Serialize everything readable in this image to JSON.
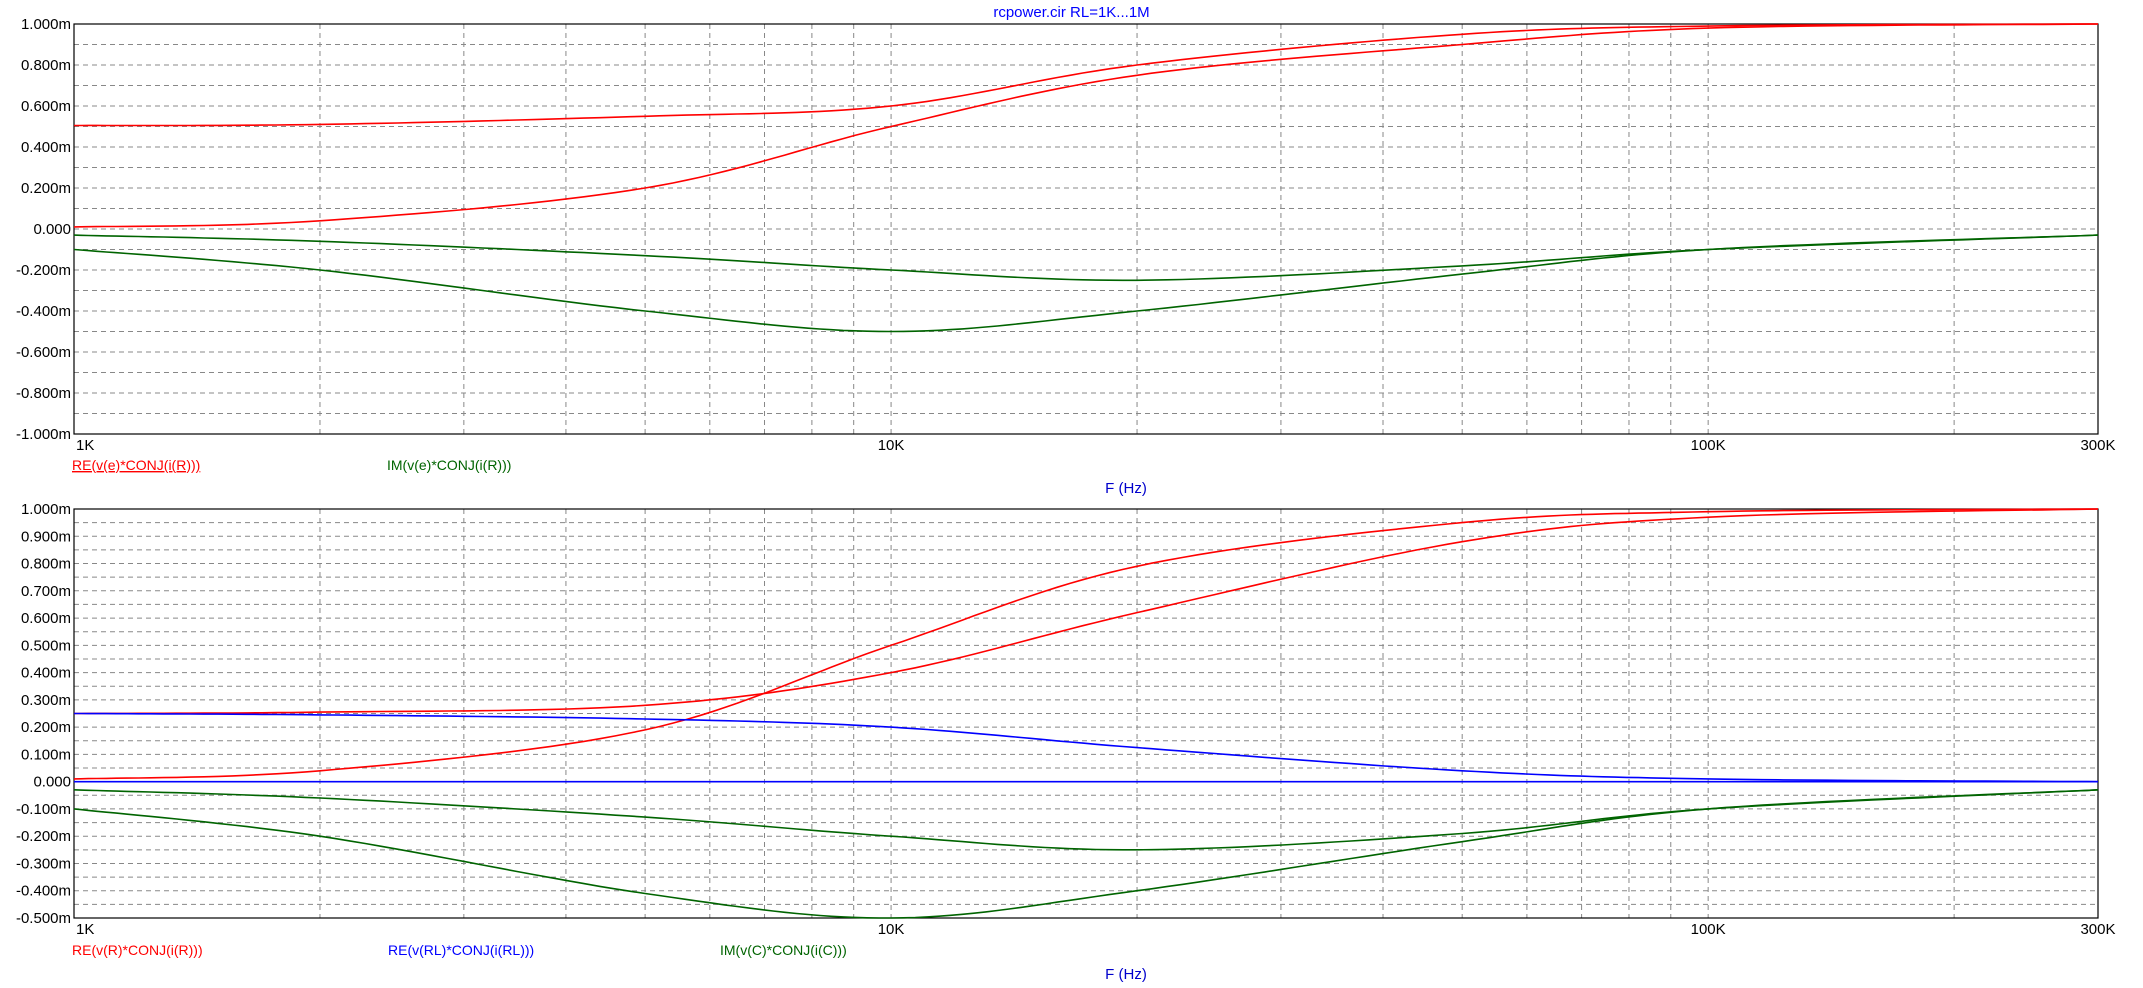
{
  "title": "rcpower.cir RL=1K...1M",
  "colors": {
    "red": "#ff0000",
    "green": "#006400",
    "blue": "#0000ff",
    "grid": "#888888",
    "frame": "#000000",
    "tick_text": "#000000",
    "label_text": "#0000cc"
  },
  "chart_data": [
    {
      "type": "line",
      "xscale": "log",
      "xlim": [
        1000,
        300000
      ],
      "ylim": [
        -0.001,
        0.001
      ],
      "ytick_labels": [
        "1.000m",
        "0.800m",
        "0.600m",
        "0.400m",
        "0.200m",
        "0.000",
        "-0.200m",
        "-0.400m",
        "-0.600m",
        "-0.800m",
        "-1.000m"
      ],
      "ytick_values": [
        0.001,
        0.0008,
        0.0006,
        0.0004,
        0.0002,
        0,
        -0.0002,
        -0.0004,
        -0.0006,
        -0.0008,
        -0.001
      ],
      "xtick_labels": [
        "1K",
        "10K",
        "100K",
        "300K"
      ],
      "xtick_values": [
        1000,
        10000,
        100000,
        300000
      ],
      "xlabel": "F (Hz)",
      "grid": true,
      "legend": [
        {
          "text": "RE(v(e)*CONJ(i(R)))",
          "color": "#ff0000"
        },
        {
          "text": "IM(v(e)*CONJ(i(R)))",
          "color": "#006400"
        }
      ],
      "series": [
        {
          "color": "#ff0000",
          "x": [
            1000,
            2000,
            5000,
            10000,
            20000,
            50000,
            100000,
            300000
          ],
          "y": [
            0.000505,
            0.00051,
            0.00055,
            0.0006,
            0.0008,
            0.00095,
            0.00099,
            0.001
          ]
        },
        {
          "color": "#ff0000",
          "x": [
            1000,
            2000,
            5000,
            10000,
            20000,
            50000,
            100000,
            300000
          ],
          "y": [
            1e-05,
            4e-05,
            0.0002,
            0.0005,
            0.00075,
            0.0009,
            0.00098,
            0.001
          ]
        },
        {
          "color": "#006400",
          "x": [
            1000,
            2000,
            5000,
            10000,
            20000,
            50000,
            100000,
            300000
          ],
          "y": [
            -3e-05,
            -6e-05,
            -0.00013,
            -0.0002,
            -0.00025,
            -0.00018,
            -0.0001,
            -3e-05
          ]
        },
        {
          "color": "#006400",
          "x": [
            1000,
            2000,
            5000,
            10000,
            20000,
            50000,
            100000,
            300000
          ],
          "y": [
            -0.0001,
            -0.0002,
            -0.0004,
            -0.0005,
            -0.0004,
            -0.00022,
            -0.0001,
            -3e-05
          ]
        }
      ]
    },
    {
      "type": "line",
      "xscale": "log",
      "xlim": [
        1000,
        300000
      ],
      "ylim": [
        -0.0005,
        0.001
      ],
      "ytick_labels": [
        "1.000m",
        "0.900m",
        "0.800m",
        "0.700m",
        "0.600m",
        "0.500m",
        "0.400m",
        "0.300m",
        "0.200m",
        "0.100m",
        "0.000",
        "-0.100m",
        "-0.200m",
        "-0.300m",
        "-0.400m",
        "-0.500m"
      ],
      "ytick_values": [
        0.001,
        0.0009,
        0.0008,
        0.0007,
        0.0006,
        0.0005,
        0.0004,
        0.0003,
        0.0002,
        0.0001,
        0,
        -0.0001,
        -0.0002,
        -0.0003,
        -0.0004,
        -0.0005
      ],
      "xtick_labels": [
        "1K",
        "10K",
        "100K",
        "300K"
      ],
      "xtick_values": [
        1000,
        10000,
        100000,
        300000
      ],
      "xlabel": "F (Hz)",
      "grid": true,
      "legend": [
        {
          "text": "RE(v(R)*CONJ(i(R)))",
          "color": "#ff0000"
        },
        {
          "text": "RE(v(RL)*CONJ(i(RL)))",
          "color": "#0000ff"
        },
        {
          "text": "IM(v(C)*CONJ(i(C)))",
          "color": "#006400"
        }
      ],
      "series": [
        {
          "color": "#ff0000",
          "x": [
            1000,
            2000,
            5000,
            10000,
            20000,
            50000,
            100000,
            300000
          ],
          "y": [
            0.00025,
            0.000255,
            0.00028,
            0.0004,
            0.00062,
            0.00088,
            0.00097,
            0.001
          ]
        },
        {
          "color": "#ff0000",
          "x": [
            1000,
            2000,
            5000,
            10000,
            20000,
            50000,
            100000,
            300000
          ],
          "y": [
            1e-05,
            4e-05,
            0.00019,
            0.0005,
            0.00079,
            0.00095,
            0.00099,
            0.001
          ]
        },
        {
          "color": "#0000ff",
          "x": [
            1000,
            2000,
            5000,
            10000,
            20000,
            50000,
            100000,
            300000
          ],
          "y": [
            0.00025,
            0.000245,
            0.00023,
            0.0002,
            0.000125,
            4e-05,
            1e-05,
            0
          ]
        },
        {
          "color": "#0000ff",
          "x": [
            1000,
            300000
          ],
          "y": [
            0,
            0
          ]
        },
        {
          "color": "#006400",
          "x": [
            1000,
            2000,
            5000,
            10000,
            20000,
            50000,
            100000,
            300000
          ],
          "y": [
            -3e-05,
            -6e-05,
            -0.00013,
            -0.0002,
            -0.00025,
            -0.00019,
            -0.0001,
            -3e-05
          ]
        },
        {
          "color": "#006400",
          "x": [
            1000,
            2000,
            5000,
            10000,
            20000,
            50000,
            100000,
            300000
          ],
          "y": [
            -0.0001,
            -0.0002,
            -0.00041,
            -0.0005,
            -0.0004,
            -0.00022,
            -0.0001,
            -3e-05
          ]
        }
      ]
    }
  ]
}
